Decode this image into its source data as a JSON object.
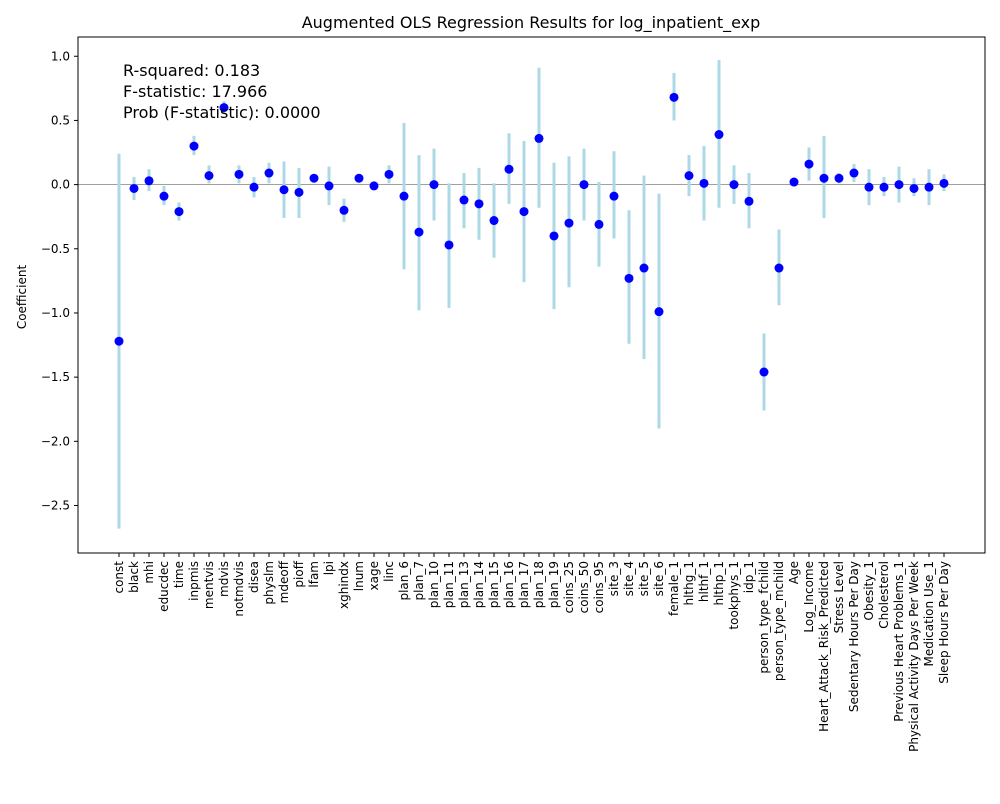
{
  "chart_data": {
    "type": "scatter",
    "title": "Augmented OLS Regression Results for log_inpatient_exp",
    "xlabel": "",
    "ylabel": "Coefficient",
    "ylim": [
      -2.87,
      1.15
    ],
    "yticks": [
      1.0,
      0.5,
      0.0,
      -0.5,
      -1.0,
      -1.5,
      -2.0,
      -2.5
    ],
    "ytick_labels": [
      "1.0",
      "0.5",
      "0.0",
      "−0.5",
      "−1.0",
      "−1.5",
      "−2.0",
      "−2.5"
    ],
    "grid": false,
    "zero_line": true,
    "colors": {
      "point": "#0000ff",
      "errorbar": "#add8e6",
      "zero_line": "#808080"
    },
    "annotations": [
      "R-squared: 0.183",
      "F-statistic: 17.966",
      "Prob (F-statistic): 0.0000"
    ],
    "categories": [
      "const",
      "black",
      "mhi",
      "educdec",
      "time",
      "inpmis",
      "mentvis",
      "mdvis",
      "notmdvis",
      "disea",
      "physlm",
      "mdeoff",
      "pioff",
      "lfam",
      "lpi",
      "xghindx",
      "lnum",
      "xage",
      "linc",
      "plan_6",
      "plan_7",
      "plan_10",
      "plan_11",
      "plan_13",
      "plan_14",
      "plan_15",
      "plan_16",
      "plan_17",
      "plan_18",
      "plan_19",
      "coins_25",
      "coins_50",
      "coins_95",
      "site_3",
      "site_4",
      "site_5",
      "site_6",
      "female_1",
      "hlthg_1",
      "hlthf_1",
      "hlthp_1",
      "tookphys_1",
      "idp_1",
      "person_type_fchild",
      "person_type_mchild",
      "Age",
      "Log_Income",
      "Heart_Attack_Risk_Predicted",
      "Stress Level",
      "Sedentary Hours Per Day",
      "Obesity_1",
      "Cholesterol",
      "Previous Heart Problems_1",
      "Physical Activity Days Per Week",
      "Medication Use_1",
      "Sleep Hours Per Day"
    ],
    "values": [
      -1.22,
      -0.03,
      0.03,
      -0.09,
      -0.21,
      0.3,
      0.07,
      0.6,
      0.08,
      -0.02,
      0.09,
      -0.04,
      -0.06,
      0.05,
      -0.01,
      -0.2,
      0.05,
      -0.01,
      0.08,
      -0.09,
      -0.37,
      0.0,
      -0.47,
      -0.12,
      -0.15,
      -0.28,
      0.12,
      -0.21,
      0.36,
      -0.4,
      -0.3,
      0.0,
      -0.31,
      -0.09,
      -0.73,
      -0.65,
      -0.99,
      0.68,
      0.07,
      0.01,
      0.39,
      0.0,
      -0.13,
      -1.46,
      -0.65,
      0.02,
      0.16,
      0.05,
      0.05,
      0.09,
      -0.02,
      -0.02,
      0.0,
      -0.03,
      -0.02,
      0.01
    ],
    "ci_lower": [
      -2.68,
      -0.12,
      -0.05,
      -0.16,
      -0.28,
      0.23,
      0.01,
      0.55,
      0.01,
      -0.1,
      0.01,
      -0.26,
      -0.26,
      0.03,
      -0.16,
      -0.29,
      0.03,
      -0.04,
      0.01,
      -0.66,
      -0.98,
      -0.28,
      -0.96,
      -0.34,
      -0.43,
      -0.57,
      -0.15,
      -0.76,
      -0.18,
      -0.97,
      -0.8,
      -0.28,
      -0.64,
      -0.42,
      -1.24,
      -1.36,
      -1.9,
      0.5,
      -0.09,
      -0.28,
      -0.18,
      -0.15,
      -0.34,
      -1.76,
      -0.94,
      -0.01,
      0.03,
      -0.26,
      0.01,
      0.02,
      -0.16,
      -0.09,
      -0.14,
      -0.09,
      -0.16,
      -0.05
    ],
    "ci_upper": [
      0.24,
      0.06,
      0.12,
      -0.01,
      -0.14,
      0.38,
      0.15,
      0.65,
      0.15,
      0.06,
      0.17,
      0.18,
      0.13,
      0.07,
      0.14,
      -0.11,
      0.07,
      0.02,
      0.15,
      0.48,
      0.23,
      0.28,
      0.01,
      0.09,
      0.13,
      0.01,
      0.4,
      0.34,
      0.91,
      0.17,
      0.22,
      0.28,
      0.02,
      0.26,
      -0.2,
      0.07,
      -0.07,
      0.87,
      0.23,
      0.3,
      0.97,
      0.15,
      0.09,
      -1.16,
      -0.35,
      0.05,
      0.29,
      0.38,
      0.09,
      0.16,
      0.12,
      0.06,
      0.14,
      0.05,
      0.12,
      0.08
    ]
  }
}
